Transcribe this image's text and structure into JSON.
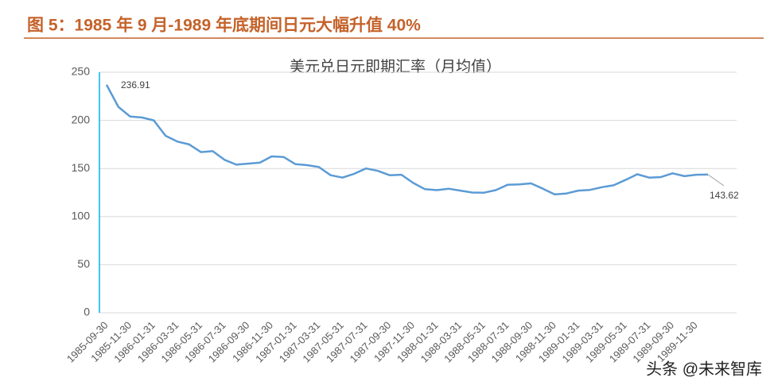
{
  "header": {
    "title": "图 5：1985 年 9 月-1989 年底期间日元大幅升值 40%"
  },
  "watermark": "头条 @未来智库",
  "chart_data": {
    "type": "line",
    "title": "美元兑日元即期汇率（月均值）",
    "color": "#5b9bd5",
    "categories": [
      "1985-09-30",
      null,
      "1985-11-30",
      null,
      "1986-01-31",
      null,
      "1986-03-31",
      null,
      "1986-05-31",
      null,
      "1986-07-31",
      null,
      "1986-09-30",
      null,
      "1986-11-30",
      null,
      "1987-01-31",
      null,
      "1987-03-31",
      null,
      "1987-05-31",
      null,
      "1987-07-31",
      null,
      "1987-09-30",
      null,
      "1987-11-30",
      null,
      "1988-01-31",
      null,
      "1988-03-31",
      null,
      "1988-05-31",
      null,
      "1988-07-31",
      null,
      "1988-09-30",
      null,
      "1988-11-30",
      null,
      "1989-01-31",
      null,
      "1989-03-31",
      null,
      "1989-05-31",
      null,
      "1989-07-31",
      null,
      "1989-09-30",
      null,
      "1989-11-30",
      null
    ],
    "values": [
      236.91,
      214,
      204,
      203,
      200,
      184,
      178,
      175,
      167,
      168,
      159,
      154,
      155,
      156,
      162.5,
      162,
      154.5,
      153.5,
      151.5,
      143,
      140.5,
      144.5,
      150,
      147.5,
      143,
      143.5,
      135,
      128.5,
      127.5,
      129,
      127,
      125,
      124.8,
      127.5,
      133,
      133.5,
      134.5,
      129,
      123,
      124,
      127,
      127.7,
      130.5,
      132.5,
      138,
      144,
      140.5,
      141,
      145,
      142,
      143.5,
      143.62
    ],
    "ylim": [
      0,
      250
    ],
    "yticks": [
      0,
      50,
      100,
      150,
      200,
      250
    ],
    "grid": true
  }
}
